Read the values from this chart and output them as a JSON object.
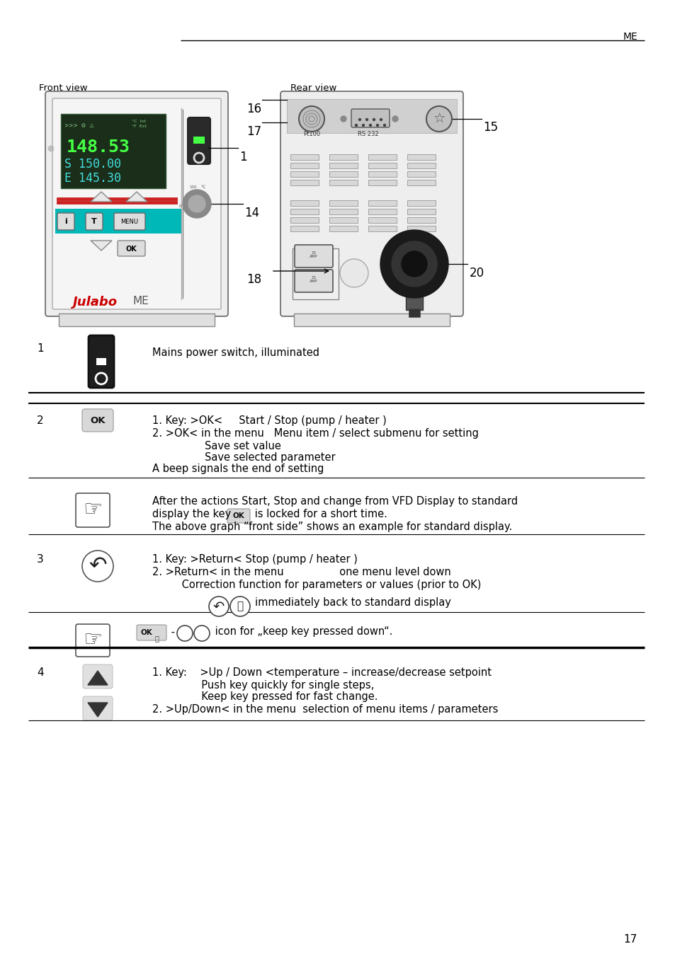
{
  "page_header": "ME",
  "page_number": "17",
  "bg_color": "#ffffff",
  "front_view_label": "Front view",
  "rear_view_label": "Rear view",
  "item1_num": "1",
  "item1_desc": "Mains power switch, illuminated",
  "item2_num": "2",
  "item2_line1": "1. Key: >OK<     Start / Stop (pump / heater )",
  "item2_line2": "2. >OK< in the menu   Menu item / select submenu for setting",
  "item2_line3": "                Save set value",
  "item2_line4": "                Save selected parameter",
  "item2_line5": "A beep signals the end of setting",
  "note1_line1": "After the actions Start, Stop and change from VFD Display to standard",
  "note1_line2a": "display the key ",
  "note1_line2b": " is locked for a short time.",
  "note1_line3": "The above graph “front side” shows an example for standard display.",
  "item3_num": "3",
  "item3_line1": "1. Key: >Return< Stop (pump / heater )",
  "item3_line2": "2. >Return< in the menu                 one menu level down",
  "item3_line3": "         Correction function for parameters or values (prior to OK)",
  "item3_line4": "immediately back to standard display",
  "note2_text": " icon for „keep key pressed down“.",
  "item4_num": "4",
  "item4_line1": "1. Key:    >Up / Down <temperature – increase/decrease setpoint",
  "item4_line2": "               Push key quickly for single steps,",
  "item4_line3": "               Keep key pressed for fast change.",
  "item4_line4": "2. >Up/Down< in the menu  selection of menu items / parameters",
  "label_1": "1",
  "label_14": "14",
  "label_15": "15",
  "label_16": "16",
  "label_17": "17",
  "label_18": "18",
  "label_20": "20"
}
